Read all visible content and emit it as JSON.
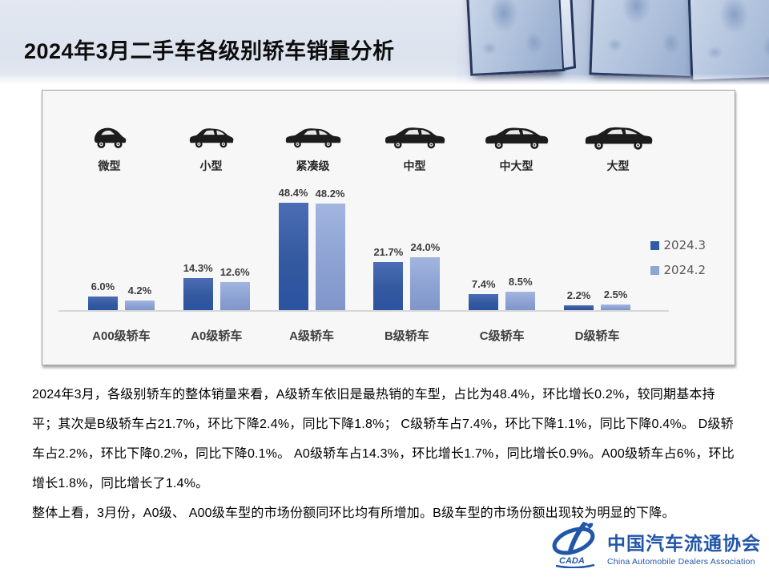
{
  "slide": {
    "title": "2024年3月二手车各级别轿车销量分析"
  },
  "chart_data": {
    "type": "bar",
    "title": "",
    "categories": [
      "A00级轿车",
      "A0级轿车",
      "A级轿车",
      "B级轿车",
      "C级轿车",
      "D级轿车"
    ],
    "car_types": [
      {
        "label": "微型",
        "icon": "micro-car-icon"
      },
      {
        "label": "小型",
        "icon": "small-car-icon"
      },
      {
        "label": "紧凑级",
        "icon": "compact-car-icon"
      },
      {
        "label": "中型",
        "icon": "midsize-car-icon"
      },
      {
        "label": "中大型",
        "icon": "mid-large-car-icon"
      },
      {
        "label": "大型",
        "icon": "large-car-icon"
      }
    ],
    "series": [
      {
        "name": "2024.3",
        "color": "#2f5ba8",
        "values": [
          6.0,
          14.3,
          48.4,
          21.7,
          7.4,
          2.2
        ]
      },
      {
        "name": "2024.2",
        "color": "#8ea5d6",
        "values": [
          4.2,
          12.6,
          48.2,
          24.0,
          8.5,
          2.5
        ]
      }
    ],
    "value_suffix": "%",
    "ylim": [
      0,
      55
    ],
    "grid": false,
    "legend_position": "right"
  },
  "body": {
    "paragraph1": "2024年3月，各级别轿车的整体销量来看，A级轿车依旧是最热销的车型，占比为48.4%，环比增长0.2%，较同期基本持平；其次是B级轿车占21.7%，环比下降2.4%，同比下降1.8%；  C级轿车占7.4%，环比下降1.1%，同比下降0.4%。  D级轿车占2.2%，环比下降0.2%，同比下降0.1%。  A0级轿车占14.3%，环比增长1.7%，同比增长0.9%。A00级轿车占6%，环比增长1.8%，同比增长了1.4%。",
    "paragraph2": "整体上看，3月份，A0级、 A00级车型的市场份额同环比均有所增加。B级车型的市场份额出现较为明显的下降。"
  },
  "logo": {
    "cn": "中国汽车流通协会",
    "en": "China Automobile Dealers Association",
    "emblem_text": "CADA",
    "color": "#2156a8"
  }
}
